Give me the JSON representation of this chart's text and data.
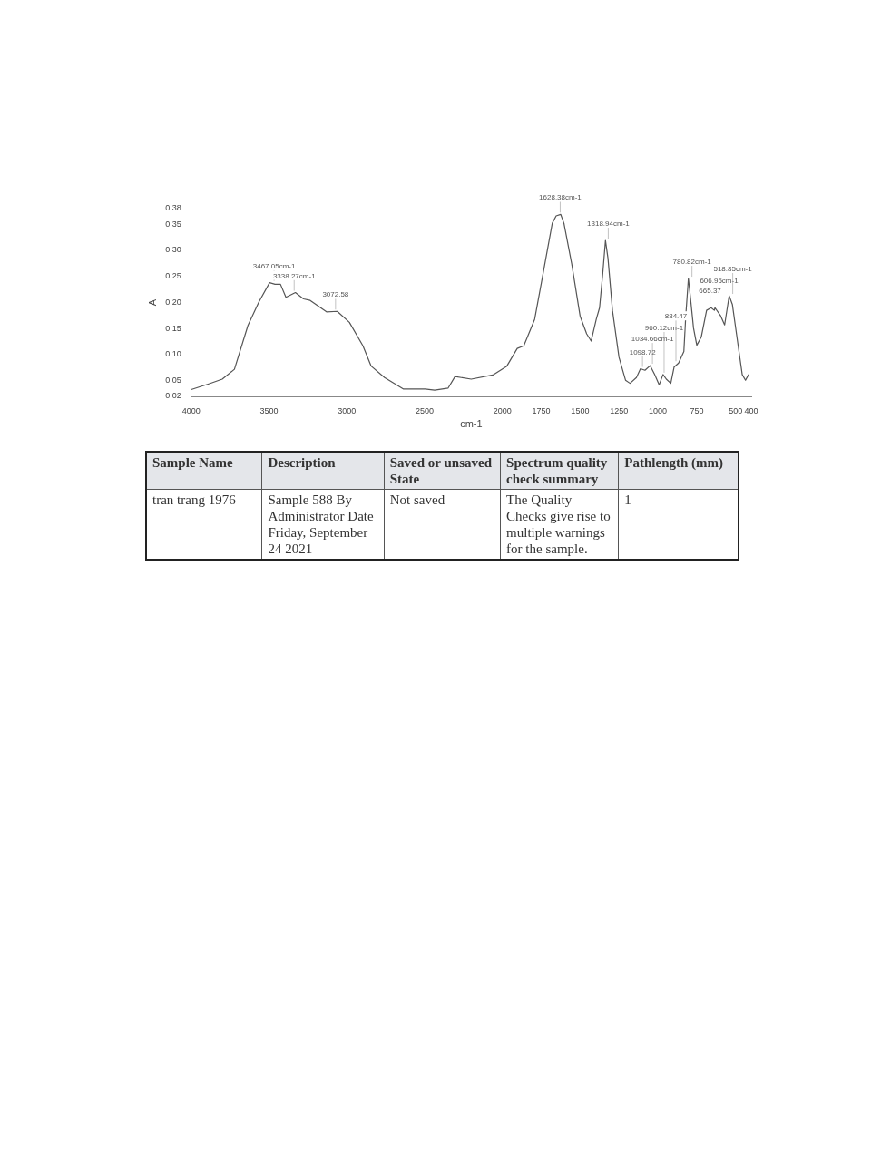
{
  "chart_data": [
    {
      "type": "line",
      "xlabel": "cm-1",
      "ylabel": "A",
      "x": [
        4000,
        3887,
        3800,
        3722,
        3635,
        3565,
        3496,
        3461,
        3426,
        3391,
        3330,
        3278,
        3235,
        3130,
        3061,
        2983,
        2896,
        2843,
        2757,
        2635,
        2496,
        2435,
        2348,
        2304,
        2200,
        2061,
        1971,
        1904,
        1862,
        1792,
        1737,
        1679,
        1654,
        1625,
        1604,
        1554,
        1500,
        1458,
        1429,
        1396,
        1375,
        1354,
        1337,
        1321,
        1292,
        1250,
        1208,
        1179,
        1138,
        1112,
        1083,
        1050,
        1021,
        992,
        967,
        946,
        917,
        896,
        867,
        833,
        821,
        804,
        792,
        771,
        750,
        721,
        687,
        658,
        637,
        633,
        596,
        571,
        542,
        521,
        487,
        458,
        437,
        417
      ],
      "values": [
        0.033,
        0.044,
        0.053,
        0.072,
        0.156,
        0.201,
        0.238,
        0.235,
        0.235,
        0.21,
        0.219,
        0.207,
        0.204,
        0.182,
        0.183,
        0.162,
        0.117,
        0.078,
        0.056,
        0.034,
        0.034,
        0.032,
        0.036,
        0.058,
        0.053,
        0.061,
        0.078,
        0.112,
        0.117,
        0.168,
        0.257,
        0.352,
        0.366,
        0.369,
        0.352,
        0.274,
        0.174,
        0.14,
        0.126,
        0.168,
        0.19,
        0.257,
        0.319,
        0.285,
        0.185,
        0.095,
        0.051,
        0.045,
        0.056,
        0.073,
        0.07,
        0.079,
        0.062,
        0.042,
        0.062,
        0.053,
        0.045,
        0.076,
        0.084,
        0.106,
        0.174,
        0.246,
        0.213,
        0.151,
        0.118,
        0.134,
        0.185,
        0.19,
        0.185,
        0.19,
        0.174,
        0.157,
        0.213,
        0.196,
        0.123,
        0.062,
        0.051,
        0.062
      ],
      "color": "#555555",
      "marker": "none",
      "line_style": "solid",
      "grid": false,
      "legend": false,
      "xlim": [
        4000,
        400
      ],
      "xticks": [
        4000,
        3500,
        3000,
        2500,
        2000,
        1750,
        1500,
        1250,
        1000,
        750,
        500,
        400
      ],
      "ylim": [
        0.02,
        0.38
      ],
      "yticks": [
        {
          "value": 0.02,
          "label": "0.02"
        },
        {
          "value": 0.05,
          "label": "0.05"
        },
        {
          "value": 0.1,
          "label": "0.10"
        },
        {
          "value": 0.15,
          "label": "0.15"
        },
        {
          "value": 0.2,
          "label": "0.20"
        },
        {
          "value": 0.25,
          "label": "0.25"
        },
        {
          "value": 0.3,
          "label": "0.30"
        },
        {
          "value": 0.35,
          "label": "0.35"
        },
        {
          "value": 0.38,
          "label": "0.38"
        }
      ],
      "annotations": [
        {
          "text": "3467.05cm-1",
          "x": 3467,
          "y": 0.238
        },
        {
          "text": "3338.27cm-1",
          "x": 3338,
          "y": 0.219
        },
        {
          "text": "3072.58",
          "x": 3072,
          "y": 0.183
        },
        {
          "text": "1628.38cm-1",
          "x": 1628,
          "y": 0.369
        },
        {
          "text": "1318.94cm-1",
          "x": 1319,
          "y": 0.319
        },
        {
          "text": "1098.72",
          "x": 1099,
          "y": 0.073
        },
        {
          "text": "1034.66cm-1",
          "x": 1035,
          "y": 0.079
        },
        {
          "text": "960.12cm-1",
          "x": 960,
          "y": 0.062
        },
        {
          "text": "884.47",
          "x": 884,
          "y": 0.084
        },
        {
          "text": "780.82cm-1",
          "x": 781,
          "y": 0.246
        },
        {
          "text": "665.37",
          "x": 665,
          "y": 0.19
        },
        {
          "text": "606.95cm-1",
          "x": 607,
          "y": 0.19
        },
        {
          "text": "518.85cm-1",
          "x": 519,
          "y": 0.213
        }
      ]
    },
    {
      "type": "other",
      "annotations": [
        "Sample Name",
        "Description",
        "Saved or unsaved State",
        "Spectrum quality check summary",
        "Pathlength (mm)",
        "tran trang 1976",
        "Sample 588 By Administrator Date Friday, September 24 2021",
        "Not saved",
        "The Quality Checks give rise to multiple warnings for the sample.",
        "1"
      ]
    }
  ]
}
